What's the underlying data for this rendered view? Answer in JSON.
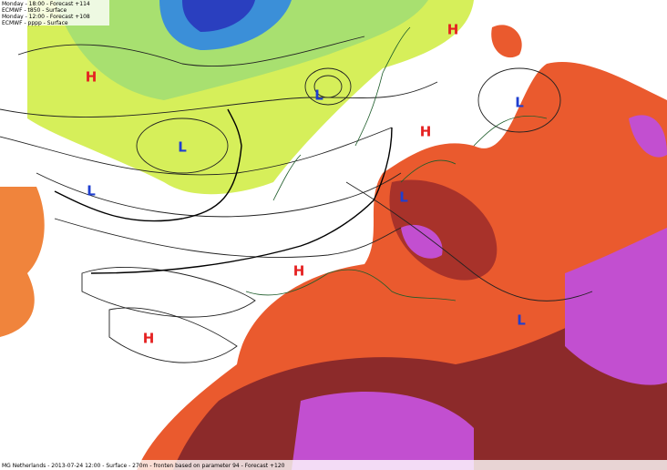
{
  "header": {
    "lines": [
      "Monday - 18:00 - Forecast +114",
      "ECMWF - t850 - Surface",
      "Monday - 12:00 - Forecast +108",
      "ECMWF - pppp - Surface"
    ]
  },
  "pressure_centers": [
    {
      "label": "H",
      "kind": "high"
    },
    {
      "label": "L",
      "kind": "low"
    },
    {
      "label": "H",
      "kind": "high"
    },
    {
      "label": "L",
      "kind": "low"
    },
    {
      "label": "H",
      "kind": "high"
    },
    {
      "label": "L",
      "kind": "low"
    },
    {
      "label": "L",
      "kind": "low"
    },
    {
      "label": "L",
      "kind": "low"
    },
    {
      "label": "H",
      "kind": "high"
    },
    {
      "label": "H",
      "kind": "high"
    },
    {
      "label": "L",
      "kind": "low"
    }
  ],
  "footer": {
    "text": "MG Netherlands - 2013-07-24 12:00 - Surface - 270m - fronten based on parameter 94 - Forecast +120"
  }
}
